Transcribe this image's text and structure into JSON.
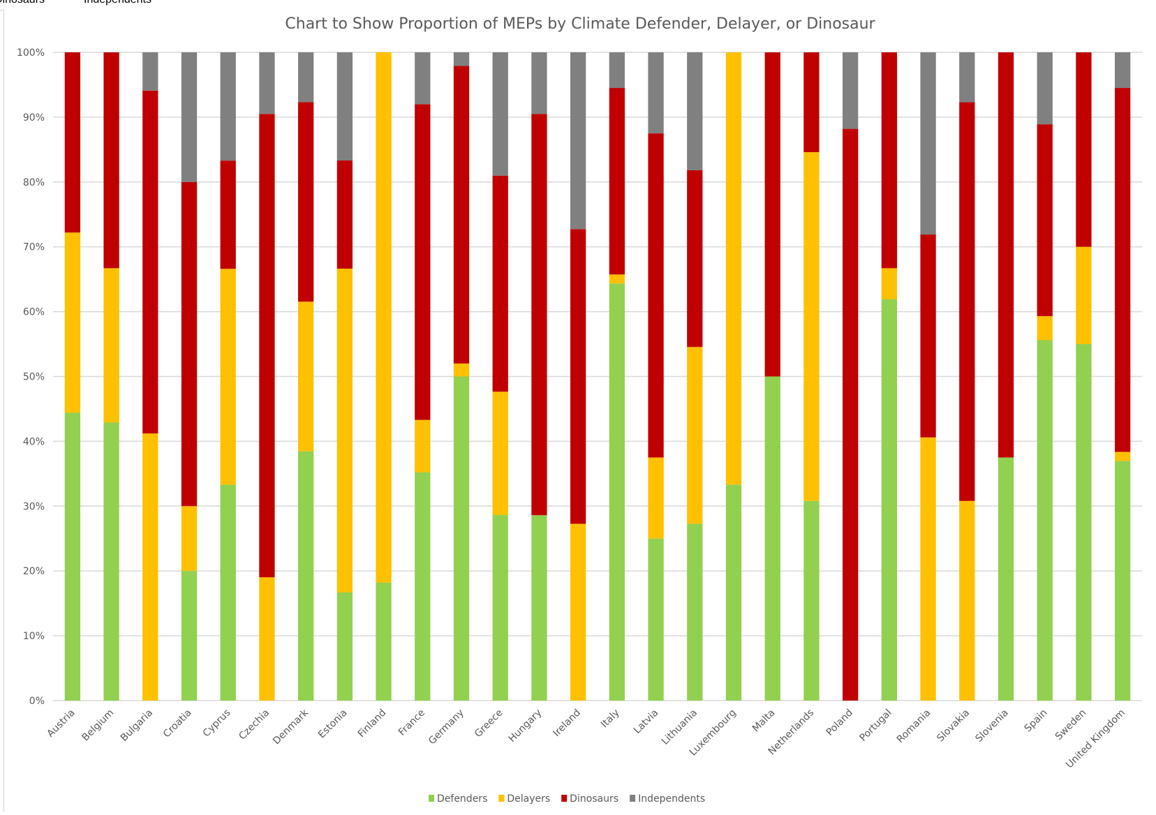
{
  "spreadsheet": {
    "visible_cells": [
      "Dinosaurs",
      "Independents"
    ]
  },
  "chart_data": {
    "type": "bar",
    "stacked": "percent",
    "title": "Chart to Show Proportion of MEPs by Climate Defender, Delayer, or Dinosaur",
    "xlabel": "",
    "ylabel": "",
    "ylim": [
      0,
      100
    ],
    "y_ticks": [
      "0%",
      "10%",
      "20%",
      "30%",
      "40%",
      "50%",
      "60%",
      "70%",
      "80%",
      "90%",
      "100%"
    ],
    "grid": true,
    "legend_position": "bottom",
    "categories": [
      "Austria",
      "Belgium",
      "Bulgaria",
      "Croatia",
      "Cyprus",
      "Czechia",
      "Denmark",
      "Estonia",
      "Finland",
      "France",
      "Germany",
      "Greece",
      "Hungary",
      "Ireland",
      "Italy",
      "Latvia",
      "Lithuania",
      "Luxembourg",
      "Malta",
      "Netherlands",
      "Poland",
      "Portugal",
      "Romania",
      "Slovakia",
      "Slovenia",
      "Spain",
      "Sweden",
      "United Kingdom"
    ],
    "series": [
      {
        "name": "Defenders",
        "color": "#92d050",
        "values": [
          44.4,
          42.9,
          0,
          20.0,
          33.3,
          0,
          38.5,
          16.7,
          18.2,
          35.2,
          50.0,
          28.6,
          28.6,
          0,
          64.4,
          25.0,
          27.3,
          33.3,
          50.0,
          30.8,
          0,
          61.9,
          0,
          0,
          37.5,
          55.6,
          55.0,
          37.0
        ]
      },
      {
        "name": "Delayers",
        "color": "#ffc000",
        "values": [
          27.8,
          23.8,
          41.2,
          10.0,
          33.3,
          19.0,
          23.1,
          50.0,
          81.8,
          8.1,
          2.0,
          19.0,
          0,
          27.3,
          1.4,
          12.5,
          27.3,
          66.7,
          0,
          53.8,
          0,
          4.8,
          40.6,
          30.8,
          0,
          3.7,
          15.0,
          1.4
        ]
      },
      {
        "name": "Dinosaurs",
        "color": "#c00000",
        "values": [
          27.8,
          33.3,
          52.9,
          50.0,
          16.7,
          71.4,
          30.8,
          16.7,
          0,
          48.7,
          45.9,
          33.3,
          61.9,
          45.5,
          28.8,
          50.0,
          27.3,
          0,
          50.0,
          15.4,
          88.2,
          33.3,
          31.3,
          61.5,
          62.5,
          29.6,
          30.0,
          56.2
        ]
      },
      {
        "name": "Independents",
        "color": "#808080",
        "values": [
          0,
          0,
          5.9,
          20.0,
          16.7,
          9.5,
          7.7,
          16.7,
          0,
          8.0,
          2.1,
          19.0,
          9.5,
          27.3,
          5.5,
          12.5,
          18.2,
          0,
          0,
          0,
          11.8,
          0,
          28.1,
          7.7,
          0,
          11.1,
          0,
          5.5
        ]
      }
    ]
  }
}
